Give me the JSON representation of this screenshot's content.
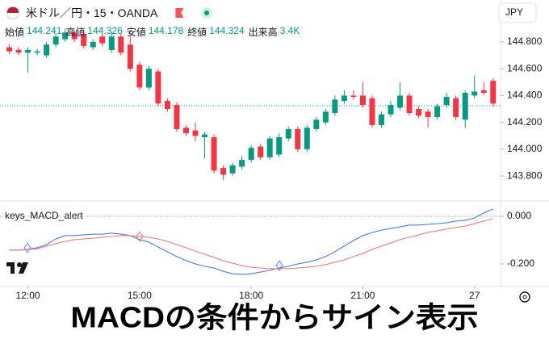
{
  "header": {
    "symbol": "米ドル／円・15・OANDA",
    "currency": "JPY",
    "ohlc": [
      {
        "label": "始値",
        "value": 144.241
      },
      {
        "label": "高値",
        "value": 144.326
      },
      {
        "label": "安値",
        "value": 144.178
      },
      {
        "label": "終値",
        "value": 144.324
      }
    ],
    "volume_label": "出来高",
    "volume": "3.4K"
  },
  "chart_data": [
    {
      "type": "candlestick",
      "x": [
        11.5,
        11.75,
        12,
        12.25,
        12.5,
        12.75,
        13,
        13.25,
        13.5,
        13.75,
        14,
        14.25,
        14.5,
        14.75,
        15,
        15.25,
        15.5,
        15.75,
        16,
        16.25,
        16.5,
        16.75,
        17,
        17.25,
        17.5,
        17.75,
        18,
        18.25,
        18.5,
        18.75,
        19,
        19.25,
        19.5,
        19.75,
        20,
        20.25,
        20.5,
        20.75,
        21,
        21.25,
        21.5,
        21.75,
        22,
        22.25,
        22.5,
        22.75,
        23,
        23.25,
        23.5,
        23.75,
        24,
        24.25,
        24.5
      ],
      "open": [
        144.76,
        144.74,
        144.72,
        144.72,
        144.7,
        144.78,
        144.82,
        144.87,
        144.86,
        144.76,
        144.84,
        144.74,
        144.84,
        144.78,
        144.63,
        144.46,
        144.58,
        144.36,
        144.33,
        144.16,
        144.14,
        144.09,
        144.09,
        143.86,
        143.82,
        143.87,
        143.92,
        144.02,
        143.94,
        143.96,
        144.08,
        144.15,
        144.0,
        144.15,
        144.2,
        144.27,
        144.36,
        144.4,
        144.4,
        144.38,
        144.18,
        144.26,
        144.31,
        144.4,
        144.3,
        144.28,
        144.24,
        144.33,
        144.38,
        144.22,
        144.4,
        144.44,
        144.51
      ],
      "high": [
        144.78,
        144.76,
        144.76,
        144.75,
        144.8,
        144.86,
        144.9,
        144.89,
        144.88,
        144.82,
        144.86,
        144.87,
        144.86,
        144.84,
        144.65,
        144.62,
        144.6,
        144.38,
        144.35,
        144.18,
        144.2,
        144.13,
        144.11,
        143.88,
        143.9,
        143.95,
        144.03,
        144.04,
        144.1,
        144.12,
        144.17,
        144.17,
        144.18,
        144.24,
        144.3,
        144.4,
        144.44,
        144.44,
        144.5,
        144.4,
        144.28,
        144.36,
        144.5,
        144.42,
        144.32,
        144.3,
        144.34,
        144.42,
        144.4,
        144.44,
        144.55,
        144.5,
        144.53
      ],
      "low": [
        144.71,
        144.7,
        144.57,
        144.7,
        144.68,
        144.76,
        144.8,
        144.8,
        144.75,
        144.74,
        144.77,
        144.72,
        144.7,
        144.58,
        144.44,
        144.44,
        144.32,
        144.28,
        144.13,
        144.1,
        144.06,
        143.93,
        143.82,
        143.77,
        143.8,
        143.85,
        143.9,
        143.92,
        143.92,
        143.94,
        144.06,
        143.98,
        143.98,
        144.13,
        144.18,
        144.25,
        144.34,
        144.37,
        144.31,
        144.16,
        144.16,
        144.24,
        144.29,
        144.25,
        144.23,
        144.16,
        144.22,
        144.31,
        144.22,
        144.16,
        144.38,
        144.4,
        144.32
      ],
      "close": [
        144.73,
        144.72,
        144.74,
        144.73,
        144.78,
        144.84,
        144.87,
        144.82,
        144.77,
        144.8,
        144.79,
        144.84,
        144.72,
        144.6,
        144.46,
        144.6,
        144.34,
        144.3,
        144.15,
        144.12,
        144.1,
        144.11,
        143.84,
        143.81,
        143.88,
        143.92,
        144.01,
        143.94,
        144.08,
        144.09,
        144.15,
        144.0,
        144.16,
        144.22,
        144.28,
        144.37,
        144.4,
        144.39,
        144.33,
        144.18,
        144.26,
        144.33,
        144.4,
        144.27,
        144.25,
        144.24,
        144.32,
        144.39,
        144.24,
        144.42,
        144.43,
        144.42,
        144.34
      ],
      "up_color": "#089981",
      "down_color": "#f23645",
      "xlim": [
        11.25,
        24.7
      ],
      "ylim": [
        143.62,
        144.92
      ],
      "yticks": [
        {
          "value": 144.8,
          "label": "144.800"
        },
        {
          "value": 144.6,
          "label": "144.600"
        },
        {
          "value": 144.4,
          "label": "144.400"
        },
        {
          "value": 144.2,
          "label": "144.200"
        },
        {
          "value": 144.0,
          "label": "144.000"
        },
        {
          "value": 143.8,
          "label": "143.800"
        }
      ]
    },
    {
      "type": "line",
      "title": "keys_MACD_alert",
      "x": [
        11.5,
        11.75,
        12,
        12.25,
        12.5,
        12.75,
        13,
        13.25,
        13.5,
        13.75,
        14,
        14.25,
        14.5,
        14.75,
        15,
        15.25,
        15.5,
        15.75,
        16,
        16.25,
        16.5,
        16.75,
        17,
        17.25,
        17.5,
        17.75,
        18,
        18.25,
        18.5,
        18.75,
        19,
        19.25,
        19.5,
        19.75,
        20,
        20.25,
        20.5,
        20.75,
        21,
        21.25,
        21.5,
        21.75,
        22,
        22.25,
        22.5,
        22.75,
        23,
        23.25,
        23.5,
        23.75,
        24,
        24.25,
        24.5
      ],
      "series": [
        {
          "color": "#3b6fe6",
          "values": [
            -0.142,
            -0.142,
            -0.139,
            -0.132,
            -0.119,
            -0.095,
            -0.081,
            -0.081,
            -0.078,
            -0.075,
            -0.075,
            -0.071,
            -0.075,
            -0.081,
            -0.098,
            -0.108,
            -0.129,
            -0.149,
            -0.169,
            -0.186,
            -0.2,
            -0.21,
            -0.217,
            -0.231,
            -0.241,
            -0.244,
            -0.241,
            -0.234,
            -0.227,
            -0.217,
            -0.21,
            -0.2,
            -0.193,
            -0.183,
            -0.169,
            -0.149,
            -0.125,
            -0.102,
            -0.081,
            -0.068,
            -0.058,
            -0.051,
            -0.044,
            -0.037,
            -0.037,
            -0.034,
            -0.031,
            -0.027,
            -0.02,
            -0.017,
            -0.007,
            0.014,
            0.031
          ]
        },
        {
          "color": "#f07070",
          "values": [
            -0.142,
            -0.142,
            -0.139,
            -0.136,
            -0.125,
            -0.115,
            -0.105,
            -0.098,
            -0.095,
            -0.092,
            -0.088,
            -0.085,
            -0.081,
            -0.081,
            -0.085,
            -0.088,
            -0.095,
            -0.105,
            -0.119,
            -0.132,
            -0.146,
            -0.159,
            -0.173,
            -0.186,
            -0.197,
            -0.207,
            -0.214,
            -0.217,
            -0.22,
            -0.22,
            -0.22,
            -0.217,
            -0.214,
            -0.21,
            -0.203,
            -0.193,
            -0.183,
            -0.169,
            -0.156,
            -0.139,
            -0.125,
            -0.112,
            -0.098,
            -0.088,
            -0.078,
            -0.068,
            -0.061,
            -0.054,
            -0.047,
            -0.041,
            -0.031,
            -0.02,
            -0.01
          ]
        }
      ],
      "xlim": [
        11.25,
        24.7
      ],
      "ylim": [
        -0.295,
        0.061
      ],
      "yticks": [
        {
          "value": 0,
          "label": "0.000"
        },
        {
          "value": -0.2,
          "label": "-0.200"
        }
      ],
      "xticks": [
        {
          "value": 12,
          "label": "12:00"
        },
        {
          "value": 15,
          "label": "15:00"
        },
        {
          "value": 18,
          "label": "18:00"
        },
        {
          "value": 21,
          "label": "21:00"
        },
        {
          "value": 24,
          "label": "27"
        }
      ]
    }
  ],
  "caption": "MACDの条件からサイン表示"
}
